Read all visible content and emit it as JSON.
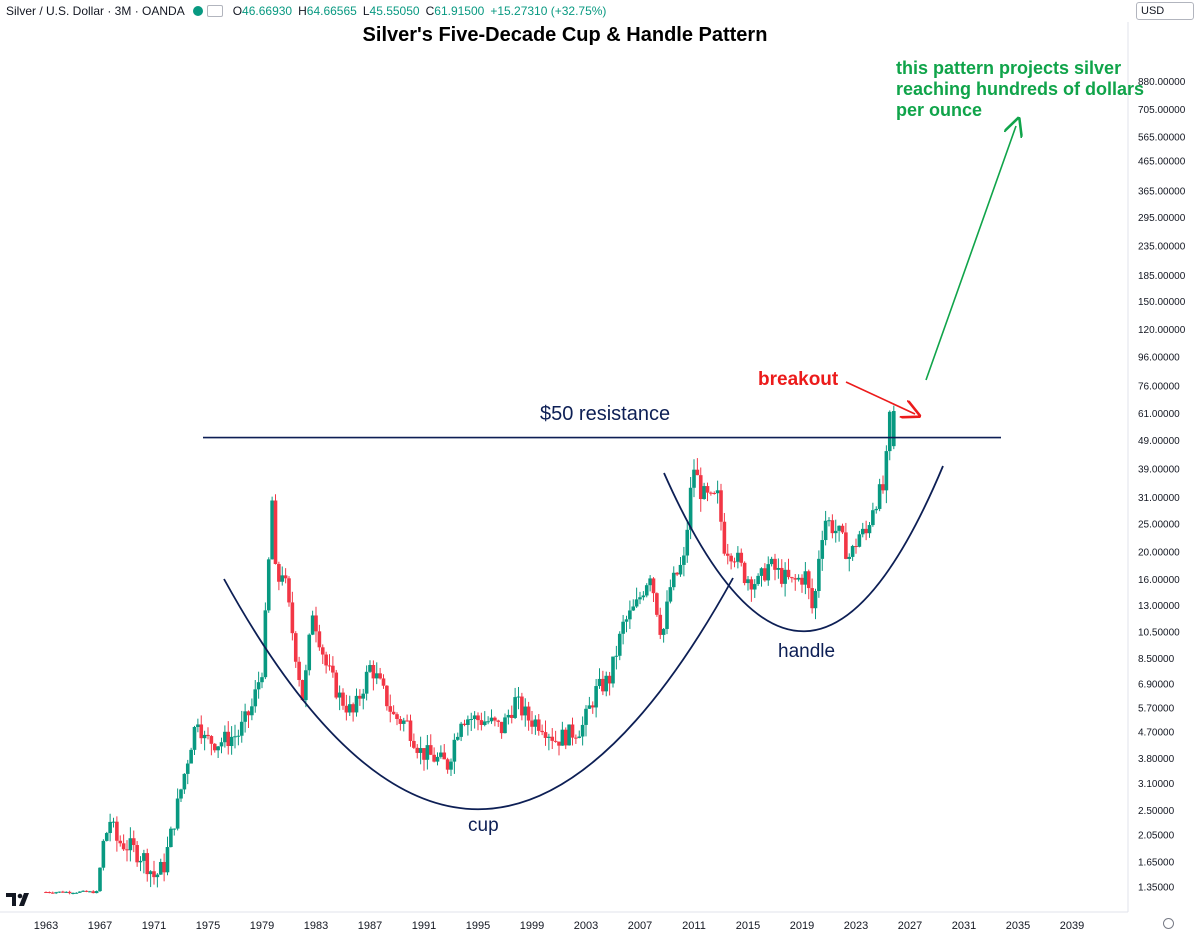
{
  "header": {
    "symbol": "Silver / U.S. Dollar · 3M · OANDA",
    "open_label": "O",
    "open": "46.66930",
    "high_label": "H",
    "high": "64.66565",
    "low_label": "L",
    "low": "45.55050",
    "close_label": "C",
    "close": "61.91500",
    "change": "+15.27310 (+32.75%)",
    "currency": "USD"
  },
  "colors": {
    "up": "#089981",
    "down": "#f23645",
    "annotation": "#0d1f55",
    "breakout": "#ec1b1b",
    "projection": "#10a44a"
  },
  "chart_data": {
    "type": "candlestick",
    "title": "Silver's Five-Decade Cup & Handle Pattern",
    "xlabel": "",
    "ylabel": "",
    "y_scale": "log",
    "ylim": [
      1.2,
      1150
    ],
    "xlim": [
      1962.4,
      2041.5
    ],
    "x_ticks": [
      "1963",
      "1967",
      "1971",
      "1975",
      "1979",
      "1983",
      "1987",
      "1991",
      "1995",
      "1999",
      "2003",
      "2007",
      "2011",
      "2015",
      "2019",
      "2023",
      "2027",
      "2031",
      "2035",
      "2039"
    ],
    "y_ticks": [
      "880.00000",
      "705.00000",
      "565.00000",
      "465.00000",
      "365.00000",
      "295.00000",
      "235.00000",
      "185.00000",
      "150.00000",
      "120.00000",
      "96.00000",
      "76.00000",
      "61.00000",
      "49.00000",
      "39.00000",
      "31.00000",
      "25.00000",
      "20.00000",
      "16.00000",
      "13.00000",
      "10.50000",
      "8.50000",
      "6.90000",
      "5.70000",
      "4.70000",
      "3.80000",
      "3.10000",
      "2.50000",
      "2.05000",
      "1.65000",
      "1.35000"
    ],
    "price_path": [
      [
        1963.0,
        1.29
      ],
      [
        1967.0,
        1.29
      ],
      [
        1967.5,
        1.9
      ],
      [
        1968.0,
        2.3
      ],
      [
        1968.5,
        1.95
      ],
      [
        1969.5,
        1.85
      ],
      [
        1970.5,
        1.7
      ],
      [
        1971.3,
        1.45
      ],
      [
        1972.0,
        1.6
      ],
      [
        1973.0,
        2.6
      ],
      [
        1974.0,
        4.3
      ],
      [
        1974.5,
        5.3
      ],
      [
        1975.0,
        4.4
      ],
      [
        1976.0,
        4.3
      ],
      [
        1977.5,
        4.6
      ],
      [
        1978.5,
        5.7
      ],
      [
        1979.3,
        8.0
      ],
      [
        1979.8,
        20.0
      ],
      [
        1980.0,
        30.0
      ],
      [
        1980.3,
        15.0
      ],
      [
        1980.8,
        17.5
      ],
      [
        1981.5,
        10.5
      ],
      [
        1982.3,
        6.0
      ],
      [
        1983.0,
        12.5
      ],
      [
        1984.0,
        8.0
      ],
      [
        1985.0,
        6.2
      ],
      [
        1986.0,
        5.4
      ],
      [
        1987.3,
        8.0
      ],
      [
        1988.0,
        6.8
      ],
      [
        1989.0,
        5.3
      ],
      [
        1990.0,
        5.0
      ],
      [
        1991.0,
        4.0
      ],
      [
        1992.0,
        3.8
      ],
      [
        1993.0,
        3.6
      ],
      [
        1994.0,
        5.3
      ],
      [
        1995.0,
        5.2
      ],
      [
        1996.0,
        5.1
      ],
      [
        1997.0,
        4.8
      ],
      [
        1998.0,
        6.0
      ],
      [
        1999.0,
        5.2
      ],
      [
        2000.0,
        5.0
      ],
      [
        2001.0,
        4.4
      ],
      [
        2002.0,
        4.6
      ],
      [
        2003.0,
        4.9
      ],
      [
        2004.0,
        6.5
      ],
      [
        2005.0,
        7.2
      ],
      [
        2006.0,
        11.0
      ],
      [
        2007.0,
        13.0
      ],
      [
        2008.0,
        17.0
      ],
      [
        2008.9,
        10.0
      ],
      [
        2009.5,
        15.0
      ],
      [
        2010.5,
        18.5
      ],
      [
        2011.2,
        40.0
      ],
      [
        2011.8,
        32.0
      ],
      [
        2012.5,
        30.0
      ],
      [
        2013.0,
        31.0
      ],
      [
        2013.5,
        21.0
      ],
      [
        2014.3,
        19.5
      ],
      [
        2015.0,
        16.5
      ],
      [
        2016.0,
        15.5
      ],
      [
        2016.8,
        18.0
      ],
      [
        2017.5,
        16.8
      ],
      [
        2018.5,
        15.5
      ],
      [
        2019.5,
        16.5
      ],
      [
        2020.1,
        12.0
      ],
      [
        2020.6,
        22.0
      ],
      [
        2021.0,
        26.0
      ],
      [
        2022.0,
        23.0
      ],
      [
        2022.8,
        19.0
      ],
      [
        2023.5,
        23.0
      ],
      [
        2024.0,
        23.0
      ],
      [
        2024.5,
        29.0
      ],
      [
        2025.0,
        32.0
      ],
      [
        2025.3,
        33.0
      ],
      [
        2025.6,
        46.7
      ],
      [
        2025.8,
        61.9
      ]
    ],
    "last_candle": {
      "open": 46.6693,
      "high": 64.66565,
      "low": 45.5505,
      "close": 61.915
    },
    "resistance": {
      "label": "$50 resistance",
      "value": 50
    },
    "annotations": {
      "breakout": "breakout",
      "cup": "cup",
      "handle": "handle",
      "projection": "this pattern projects silver reaching hundreds of dollars per ounce"
    }
  }
}
